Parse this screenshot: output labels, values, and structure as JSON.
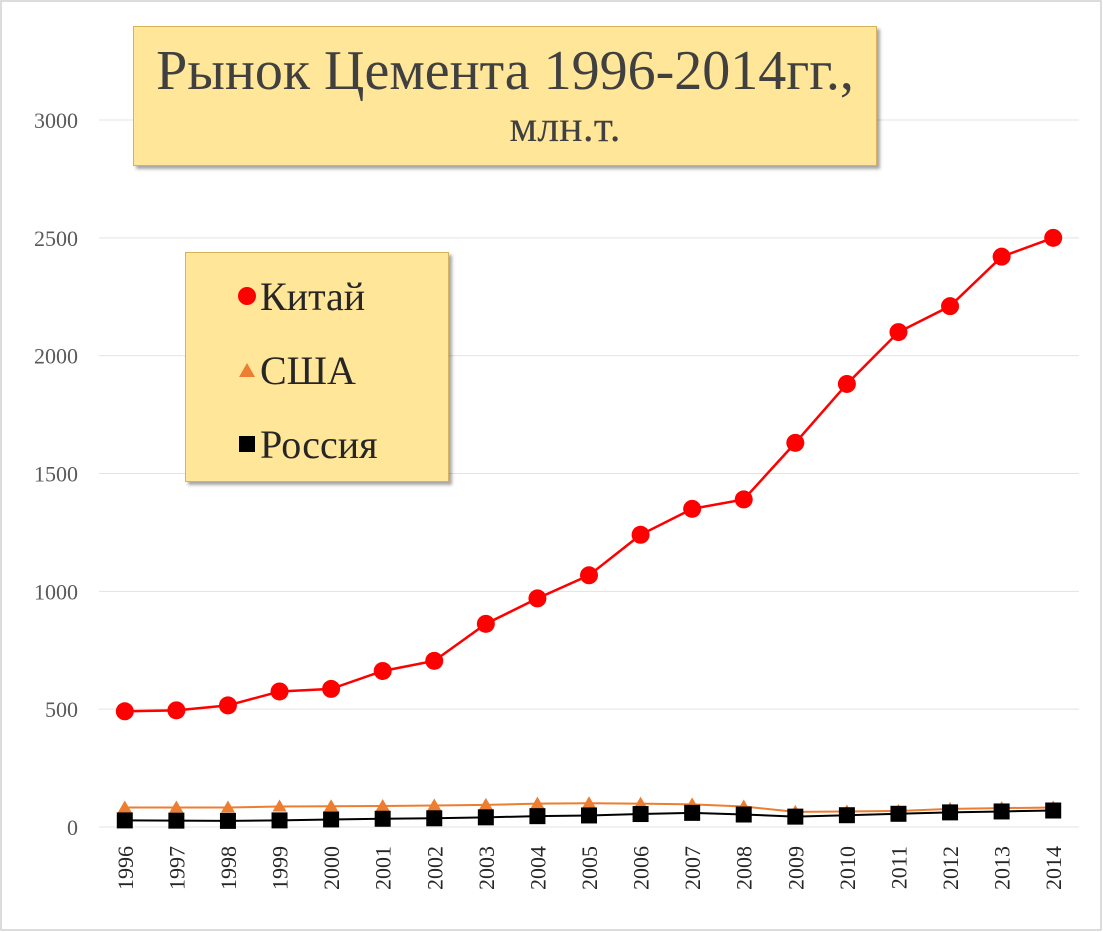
{
  "chart_data": {
    "type": "line",
    "title": "Рынок Цемента 1996-2014гг.,",
    "subtitle": "млн.т.",
    "categories": [
      "1996",
      "1997",
      "1998",
      "1999",
      "2000",
      "2001",
      "2002",
      "2003",
      "2004",
      "2005",
      "2006",
      "2007",
      "2008",
      "2009",
      "2010",
      "2011",
      "2012",
      "2013",
      "2014"
    ],
    "y_ticks": [
      "0",
      "500",
      "1000",
      "1500",
      "2000",
      "2500",
      "3000"
    ],
    "ylim": [
      0,
      3000
    ],
    "grid": true,
    "legend_position": "upper-left",
    "series": [
      {
        "name": "Китай",
        "color": "#ff0000",
        "marker": "circle",
        "values": [
          491,
          495,
          516,
          575,
          586,
          662,
          705,
          862,
          970,
          1068,
          1240,
          1350,
          1390,
          1630,
          1880,
          2100,
          2210,
          2420,
          2500
        ]
      },
      {
        "name": "США",
        "color": "#ed7d31",
        "marker": "triangle",
        "values": [
          83,
          83,
          83,
          87,
          88,
          89,
          91,
          94,
          99,
          101,
          99,
          96,
          87,
          64,
          66,
          68,
          77,
          80,
          83
        ]
      },
      {
        "name": "Россия",
        "color": "#000000",
        "marker": "square",
        "values": [
          28,
          27,
          26,
          28,
          32,
          35,
          37,
          41,
          46,
          49,
          55,
          60,
          53,
          44,
          50,
          56,
          62,
          66,
          70
        ]
      }
    ]
  }
}
